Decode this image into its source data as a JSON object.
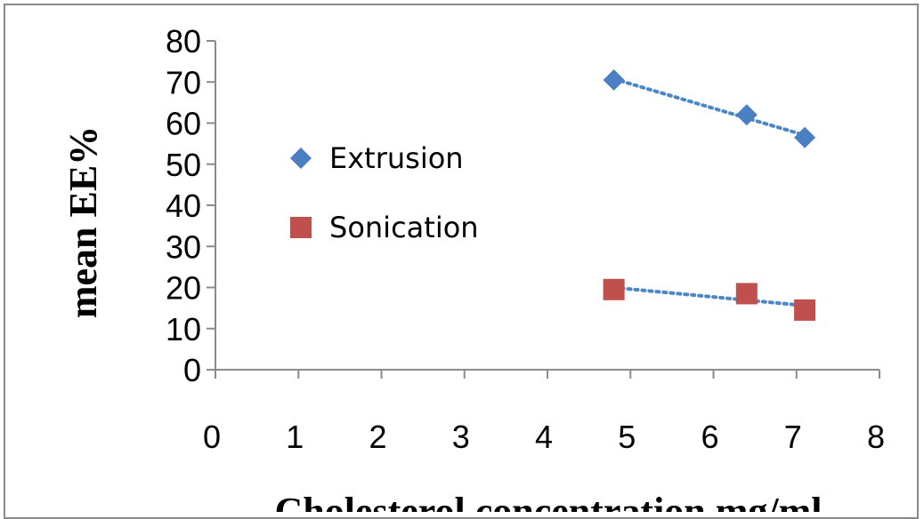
{
  "chart_data": {
    "type": "scatter",
    "title": "",
    "xlabel": "Cholesterol concentration mg/ml",
    "ylabel": "mean EE%",
    "xlim": [
      0,
      8
    ],
    "ylim": [
      0,
      80
    ],
    "xticks": [
      "0",
      "1",
      "2",
      "3",
      "4",
      "5",
      "6",
      "7",
      "8"
    ],
    "yticks": [
      "0",
      "10",
      "20",
      "30",
      "40",
      "50",
      "60",
      "70",
      "80"
    ],
    "grid": false,
    "legend_position": "center-left",
    "trendline_color": "#4a86c8",
    "series": [
      {
        "name": "Extrusion",
        "marker": "diamond",
        "color": "#4a7fc4",
        "x": [
          4.8,
          6.4,
          7.1
        ],
        "y": [
          70.5,
          62,
          56.5
        ],
        "trend": "linear"
      },
      {
        "name": "Sonication",
        "marker": "square",
        "color": "#c0504d",
        "x": [
          4.8,
          6.4,
          7.1
        ],
        "y": [
          19.5,
          18.5,
          14.5
        ],
        "trend": "linear"
      }
    ]
  }
}
